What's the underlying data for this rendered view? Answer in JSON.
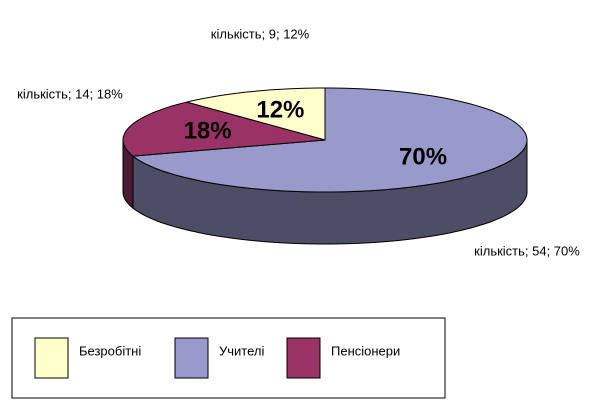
{
  "chart_data": {
    "type": "pie",
    "categories": [
      "Безробітні",
      "Учителі",
      "Пенсіонери"
    ],
    "values": [
      12,
      70,
      18
    ],
    "value_labels": [
      "12%",
      "70%",
      "18%"
    ],
    "data_labels": [
      "кількість;  9; 12%",
      "кількість; 54;  70%",
      "кількість; 14; 18%"
    ],
    "colors": [
      "#ffffcc",
      "#9999cc",
      "#993366"
    ],
    "legend": "bottom"
  }
}
